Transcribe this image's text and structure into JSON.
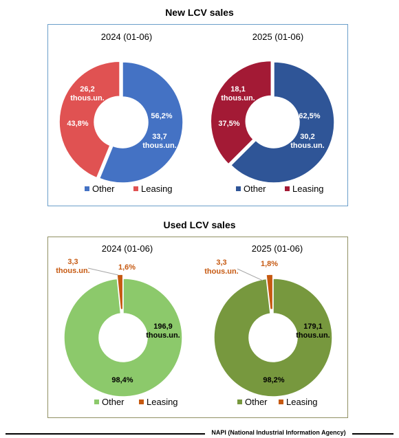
{
  "chart_data": [
    {
      "type": "pie",
      "section_title": "New LCV sales",
      "title": "2024 (01-06)",
      "categories": [
        "Other",
        "Leasing"
      ],
      "values": [
        56.2,
        43.8
      ],
      "units": "%",
      "value_labels": [
        "56,2%",
        "43,8%"
      ],
      "volume_labels": [
        "33,7 thous.un.",
        "26,2 thous.un."
      ],
      "colors": [
        "#4472c4",
        "#e05252"
      ],
      "legend": "bottom"
    },
    {
      "type": "pie",
      "section_title": "New LCV sales",
      "title": "2025 (01-06)",
      "categories": [
        "Other",
        "Leasing"
      ],
      "values": [
        62.5,
        37.5
      ],
      "units": "%",
      "value_labels": [
        "62,5%",
        "37,5%"
      ],
      "volume_labels": [
        "30,2 thous.un.",
        "18,1 thous.un."
      ],
      "colors": [
        "#2f5597",
        "#a31a35"
      ],
      "legend": "bottom"
    },
    {
      "type": "pie",
      "section_title": "Used LCV sales",
      "title": "2024 (01-06)",
      "categories": [
        "Other",
        "Leasing"
      ],
      "values": [
        98.4,
        1.6
      ],
      "units": "%",
      "value_labels": [
        "98,4%",
        "1,6%"
      ],
      "volume_labels": [
        "196,9 thous.un.",
        "3,3 thous.un."
      ],
      "colors": [
        "#8cc96b",
        "#c65911"
      ],
      "legend": "bottom"
    },
    {
      "type": "pie",
      "section_title": "Used LCV sales",
      "title": "2025 (01-06)",
      "categories": [
        "Other",
        "Leasing"
      ],
      "values": [
        98.2,
        1.8
      ],
      "units": "%",
      "value_labels": [
        "98,2%",
        "1,8%"
      ],
      "volume_labels": [
        "179,1 thous.un.",
        "3,3 thous.un."
      ],
      "colors": [
        "#77983e",
        "#c65911"
      ],
      "legend": "bottom"
    }
  ],
  "sections": {
    "new_title": "New LCV sales",
    "used_title": "Used LCV sales"
  },
  "source": "NAPI (National Industrial Information Agency)"
}
